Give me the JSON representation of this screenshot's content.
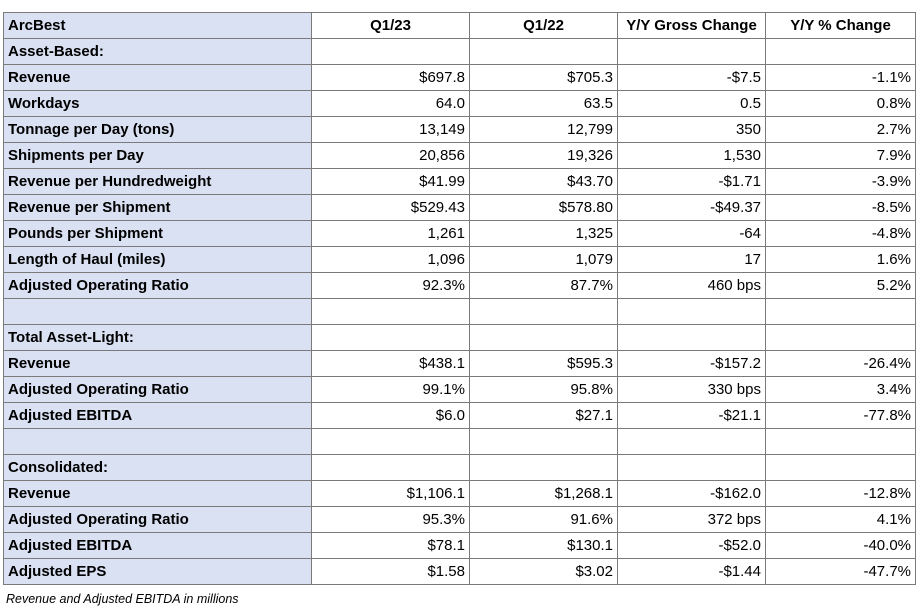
{
  "table": {
    "columns": [
      "ArcBest",
      "Q1/23",
      "Q1/22",
      "Y/Y Gross Change",
      "Y/Y % Change"
    ],
    "rows": [
      [
        "Asset-Based:",
        "",
        "",
        "",
        ""
      ],
      [
        "Revenue",
        "$697.8",
        "$705.3",
        "-$7.5",
        "-1.1%"
      ],
      [
        "Workdays",
        "64.0",
        "63.5",
        "0.5",
        "0.8%"
      ],
      [
        "Tonnage per Day (tons)",
        "13,149",
        "12,799",
        "350",
        "2.7%"
      ],
      [
        "Shipments per Day",
        "20,856",
        "19,326",
        "1,530",
        "7.9%"
      ],
      [
        "Revenue per Hundredweight",
        "$41.99",
        "$43.70",
        "-$1.71",
        "-3.9%"
      ],
      [
        "Revenue per Shipment",
        "$529.43",
        "$578.80",
        "-$49.37",
        "-8.5%"
      ],
      [
        "Pounds per Shipment",
        "1,261",
        "1,325",
        "-64",
        "-4.8%"
      ],
      [
        "Length of Haul (miles)",
        "1,096",
        "1,079",
        "17",
        "1.6%"
      ],
      [
        "Adjusted Operating Ratio",
        "92.3%",
        "87.7%",
        "460 bps",
        "5.2%"
      ],
      [
        "",
        "",
        "",
        "",
        ""
      ],
      [
        "Total Asset-Light:",
        "",
        "",
        "",
        ""
      ],
      [
        "Revenue",
        "$438.1",
        "$595.3",
        "-$157.2",
        "-26.4%"
      ],
      [
        "Adjusted Operating Ratio",
        "99.1%",
        "95.8%",
        "330 bps",
        "3.4%"
      ],
      [
        "Adjusted EBITDA",
        "$6.0",
        "$27.1",
        "-$21.1",
        "-77.8%"
      ],
      [
        "",
        "",
        "",
        "",
        ""
      ],
      [
        "Consolidated:",
        "",
        "",
        "",
        ""
      ],
      [
        "Revenue",
        "$1,106.1",
        "$1,268.1",
        "-$162.0",
        "-12.8%"
      ],
      [
        "Adjusted Operating Ratio",
        "95.3%",
        "91.6%",
        "372 bps",
        "4.1%"
      ],
      [
        "Adjusted EBITDA",
        "$78.1",
        "$130.1",
        "-$52.0",
        "-40.0%"
      ],
      [
        "Adjusted EPS",
        "$1.58",
        "$3.02",
        "-$1.44",
        "-47.7%"
      ]
    ]
  },
  "footnote": "Revenue and Adjusted EBITDA in millions",
  "colors": {
    "label_column_bg": "#d9e1f2",
    "border": "#7a7a7a",
    "text": "#000000"
  }
}
